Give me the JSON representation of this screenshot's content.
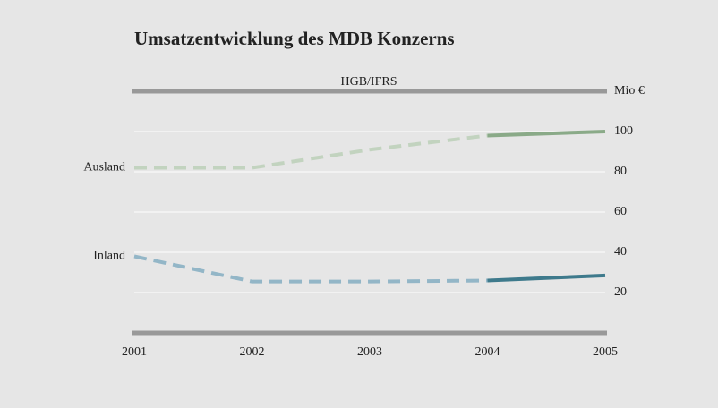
{
  "chart_data": {
    "type": "line",
    "title": "Umsatzentwicklung des MDB Konzerns",
    "annotation": "HGB/IFRS",
    "categories": [
      "2001",
      "2002",
      "2003",
      "2004",
      "2005"
    ],
    "series": [
      {
        "name": "Ausland",
        "color": "#8aaa88",
        "dashed_color": "#c2d3bf",
        "values": [
          82,
          82,
          91,
          98,
          100
        ]
      },
      {
        "name": "Inland",
        "color": "#3e7a8c",
        "dashed_color": "#93b6c7",
        "values": [
          38,
          25.5,
          25.5,
          26,
          28.5
        ]
      }
    ],
    "solid_from": "2004",
    "ylim": [
      0,
      120
    ],
    "yticks": [
      20,
      40,
      60,
      80,
      100,
      {
        "value": 120,
        "label": "Mio €"
      }
    ],
    "grid": true
  }
}
